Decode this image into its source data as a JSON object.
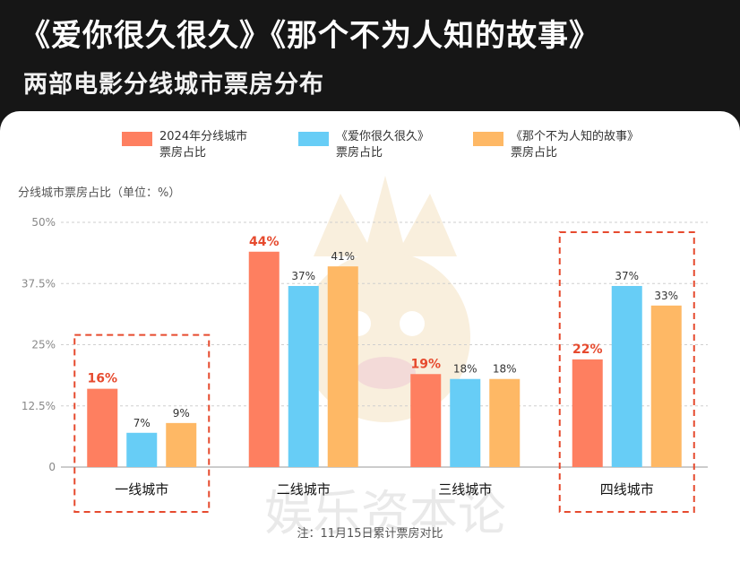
{
  "header": {
    "title": "《爱你很久很久》《那个不为人知的故事》",
    "subtitle": "两部电影分线城市票房分布"
  },
  "watermark": {
    "text": "娱乐资本论"
  },
  "footnote": "注：11月15日累计票房对比",
  "colors": {
    "series_2024": "#fe7f60",
    "series_love": "#67cdf6",
    "series_story": "#feb865",
    "highlight": "#e64a2e"
  },
  "chart_data": {
    "type": "bar",
    "title": "",
    "ylabel": "分线城市票房占比（单位：%）",
    "xlabel": "",
    "ylim": [
      0,
      50
    ],
    "yticks": [
      0,
      12.5,
      25,
      37.5,
      50
    ],
    "ytick_labels": [
      "0",
      "12.5%",
      "25%",
      "37.5%",
      "50%"
    ],
    "grid": "horizontal-dashed",
    "legend_position": "top",
    "categories": [
      "一线城市",
      "二线城市",
      "三线城市",
      "四线城市"
    ],
    "highlighted_categories": [
      "一线城市",
      "四线城市"
    ],
    "series": [
      {
        "name": "2024年分线城市票房占比",
        "legend_lines": [
          "2024年分线城市",
          "票房占比"
        ],
        "values": [
          16,
          44,
          19,
          22
        ],
        "labels": [
          "16%",
          "44%",
          "19%",
          "22%"
        ],
        "highlight_labels": true
      },
      {
        "name": "《爱你很久很久》票房占比",
        "legend_lines": [
          "《爱你很久很久》",
          "票房占比"
        ],
        "values": [
          7,
          37,
          18,
          37
        ],
        "labels": [
          "7%",
          "37%",
          "18%",
          "37%"
        ],
        "highlight_labels": false
      },
      {
        "name": "《那个不为人知的故事》票房占比",
        "legend_lines": [
          "《那个不为人知的故事》",
          "票房占比"
        ],
        "values": [
          9,
          41,
          18,
          33
        ],
        "labels": [
          "9%",
          "41%",
          "18%",
          "33%"
        ],
        "highlight_labels": false
      }
    ]
  }
}
